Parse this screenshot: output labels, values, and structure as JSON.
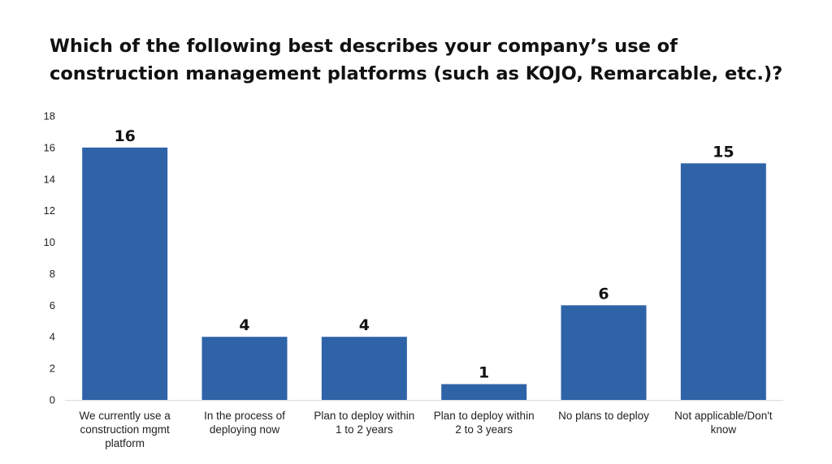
{
  "chart_data": {
    "type": "bar",
    "title_lines": [
      "Which of the following best describes your company’s use of",
      "construction management platforms (such as KOJO, Remarcable, etc.)?"
    ],
    "categories": [
      [
        "We currently use a",
        "construction mgmt",
        "platform"
      ],
      [
        "In the process of",
        "deploying now"
      ],
      [
        "Plan to deploy within",
        "1 to 2 years"
      ],
      [
        "Plan to deploy within",
        "2 to 3 years"
      ],
      [
        "No plans to deploy"
      ],
      [
        "Not applicable/Don't",
        "know"
      ]
    ],
    "values": [
      16,
      4,
      4,
      1,
      6,
      15
    ],
    "ylim": [
      0,
      18
    ],
    "yticks": [
      0,
      2,
      4,
      6,
      8,
      10,
      12,
      14,
      16,
      18
    ],
    "xlabel": "",
    "ylabel": "",
    "grid": false,
    "legend": "none",
    "bar_color": "#2e63a8",
    "axis_color": "#d9d9d9"
  }
}
